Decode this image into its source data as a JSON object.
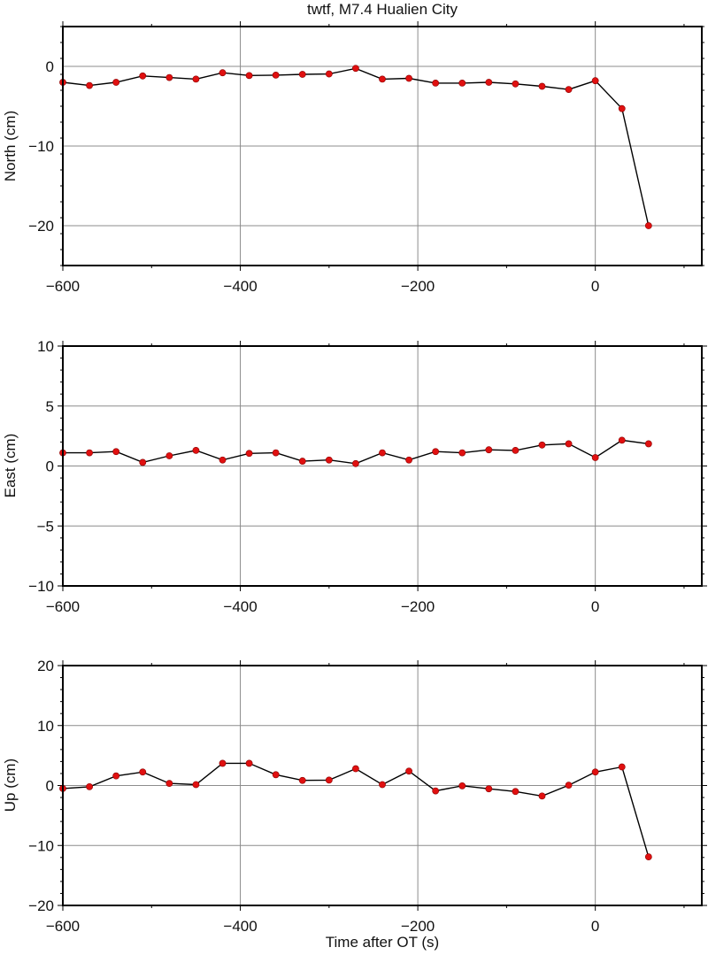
{
  "figure": {
    "title": "twtf, M7.4 Hualien City",
    "xlabel": "Time after OT (s)"
  },
  "style": {
    "marker_color": "#e01010",
    "marker_edge": "#8a0000",
    "line_color": "#000000",
    "grid_color": "#8c8c8c",
    "frame_color": "#000000"
  },
  "chart_data": [
    {
      "type": "line",
      "title": "twtf, M7.4 Hualien City",
      "panel": "north",
      "xlabel": "",
      "ylabel": "North (cm)",
      "xlim": [
        -600,
        120
      ],
      "ylim": [
        -25,
        5
      ],
      "xticks": [
        -600,
        -400,
        -200,
        0
      ],
      "xtick_labels": [
        "−600",
        "−400",
        "−200",
        "0"
      ],
      "yticks": [
        -20,
        -10,
        0
      ],
      "ytick_labels": [
        "−20",
        "−10",
        "0"
      ],
      "y_minor_step": 2,
      "grid": true,
      "x": [
        -600,
        -570,
        -540,
        -510,
        -480,
        -450,
        -420,
        -390,
        -360,
        -330,
        -300,
        -270,
        -240,
        -210,
        -180,
        -150,
        -120,
        -90,
        -60,
        -30,
        0,
        30,
        60
      ],
      "y": [
        -2.0,
        -2.4,
        -2.0,
        -1.2,
        -1.4,
        -1.6,
        -0.8,
        -1.15,
        -1.1,
        -1.0,
        -0.95,
        -0.25,
        -1.6,
        -1.5,
        -2.1,
        -2.1,
        -2.0,
        -2.2,
        -2.5,
        -2.9,
        -1.8,
        -5.3,
        -20.0
      ]
    },
    {
      "type": "line",
      "panel": "east",
      "xlabel": "",
      "ylabel": "East (cm)",
      "xlim": [
        -600,
        120
      ],
      "ylim": [
        -10,
        10
      ],
      "xticks": [
        -600,
        -400,
        -200,
        0
      ],
      "xtick_labels": [
        "−600",
        "−400",
        "−200",
        "0"
      ],
      "yticks": [
        -10,
        -5,
        0,
        5,
        10
      ],
      "ytick_labels": [
        "−10",
        "−5",
        "0",
        "5",
        "10"
      ],
      "y_minor_step": 1,
      "grid": true,
      "x": [
        -600,
        -570,
        -540,
        -510,
        -480,
        -450,
        -420,
        -390,
        -360,
        -330,
        -300,
        -270,
        -240,
        -210,
        -180,
        -150,
        -120,
        -90,
        -60,
        -30,
        0,
        30,
        60
      ],
      "y": [
        1.1,
        1.1,
        1.2,
        0.3,
        0.85,
        1.3,
        0.5,
        1.05,
        1.1,
        0.4,
        0.5,
        0.2,
        1.1,
        0.5,
        1.2,
        1.1,
        1.35,
        1.3,
        1.75,
        1.85,
        0.7,
        2.15,
        1.85
      ]
    },
    {
      "type": "line",
      "panel": "up",
      "xlabel": "Time after OT (s)",
      "ylabel": "Up (cm)",
      "xlim": [
        -600,
        120
      ],
      "ylim": [
        -20,
        20
      ],
      "xticks": [
        -600,
        -400,
        -200,
        0
      ],
      "xtick_labels": [
        "−600",
        "−400",
        "−200",
        "0"
      ],
      "yticks": [
        -20,
        -10,
        0,
        10,
        20
      ],
      "ytick_labels": [
        "−20",
        "−10",
        "0",
        "10",
        "20"
      ],
      "y_minor_step": 2,
      "grid": true,
      "x": [
        -600,
        -570,
        -540,
        -510,
        -480,
        -450,
        -420,
        -390,
        -360,
        -330,
        -300,
        -270,
        -240,
        -210,
        -180,
        -150,
        -120,
        -90,
        -60,
        -30,
        0,
        30,
        60
      ],
      "y": [
        -0.5,
        -0.2,
        1.6,
        2.25,
        0.35,
        0.15,
        3.7,
        3.7,
        1.8,
        0.85,
        0.9,
        2.8,
        0.15,
        2.4,
        -0.9,
        -0.05,
        -0.55,
        -1.0,
        -1.75,
        0.05,
        2.25,
        3.1,
        -11.9
      ]
    }
  ]
}
